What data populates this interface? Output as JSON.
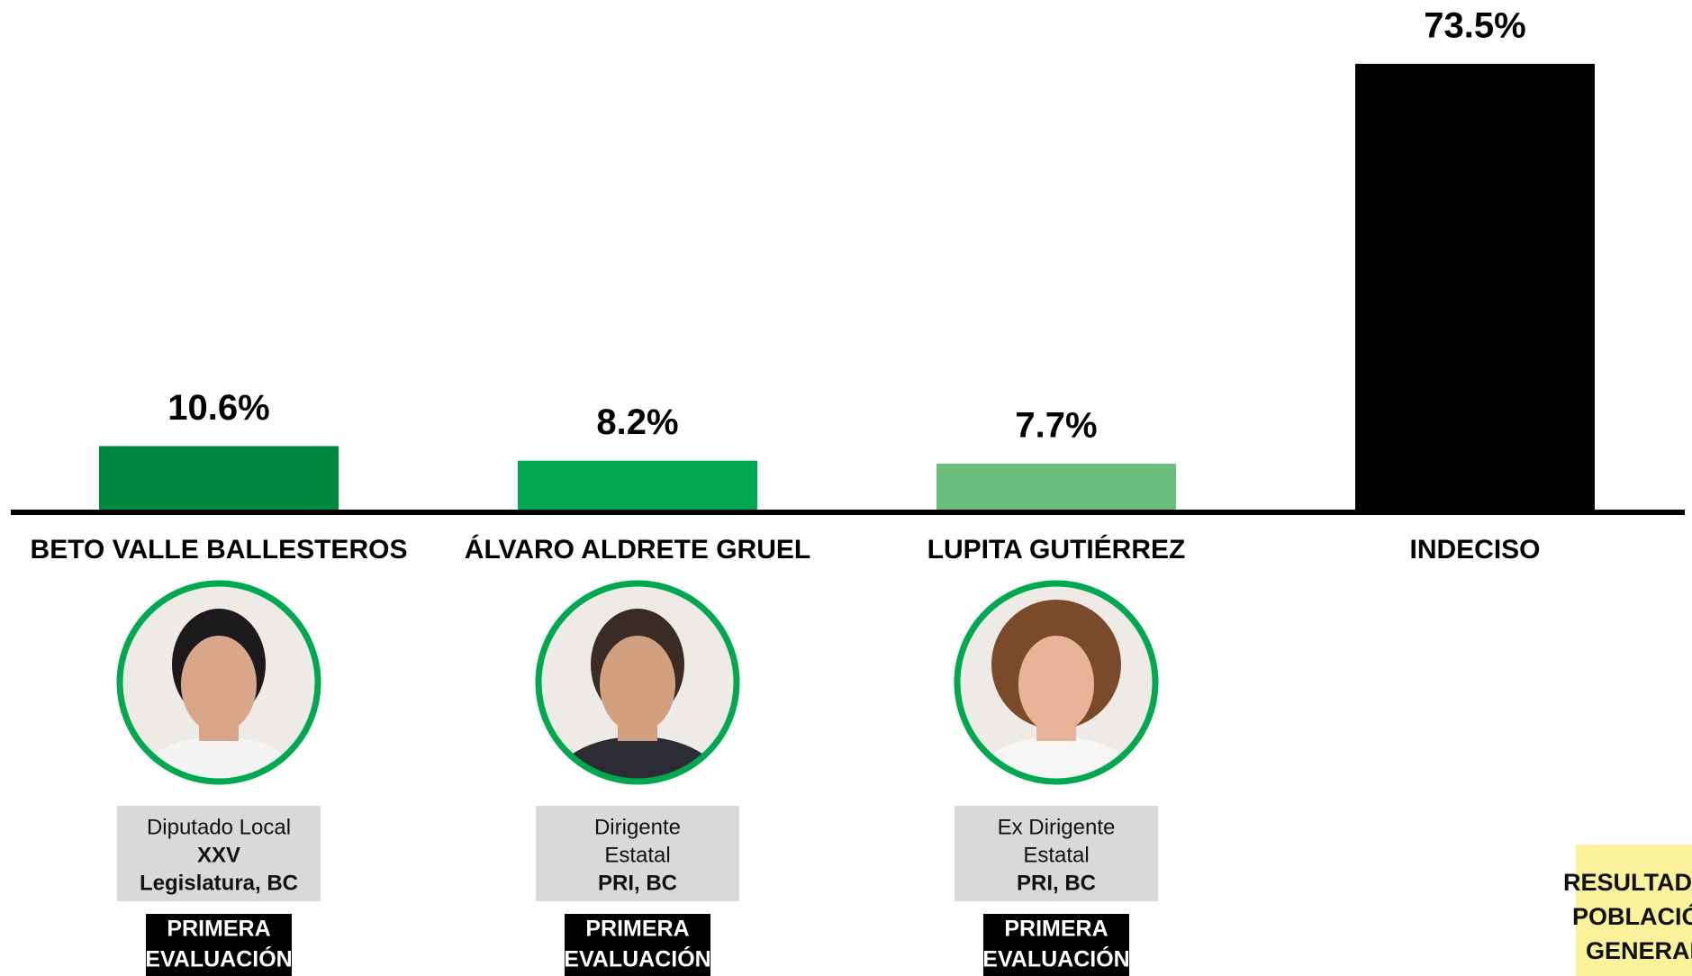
{
  "chart_data": {
    "type": "bar",
    "categories": [
      "BETO VALLE BALLESTEROS",
      "ÁLVARO ALDRETE GRUEL",
      "LUPITA GUTIÉRREZ",
      "INDECISO"
    ],
    "values": [
      10.6,
      8.2,
      7.7,
      73.5
    ],
    "value_labels": [
      "10.6%",
      "8.2%",
      "7.7%",
      "73.5%"
    ],
    "colors": [
      "#00873e",
      "#00a84f",
      "#6cc07f",
      "#000000"
    ],
    "ylim": [
      0,
      80
    ]
  },
  "candidates": [
    {
      "role": [
        "Diputado Local"
      ],
      "role_bold": [
        "XXV",
        "Legislatura, BC"
      ],
      "badge": [
        "PRIMERA",
        "EVALUACIÓN"
      ]
    },
    {
      "role": [
        "Dirigente",
        "Estatal"
      ],
      "role_bold": [
        "PRI, BC"
      ],
      "badge": [
        "PRIMERA",
        "EVALUACIÓN"
      ]
    },
    {
      "role": [
        "Ex Dirigente",
        "Estatal"
      ],
      "role_bold": [
        "PRI, BC"
      ],
      "badge": [
        "PRIMERA",
        "EVALUACIÓN"
      ]
    }
  ],
  "note": [
    "RESULTADOS",
    "POBLACIÓN",
    "GENERAL"
  ]
}
